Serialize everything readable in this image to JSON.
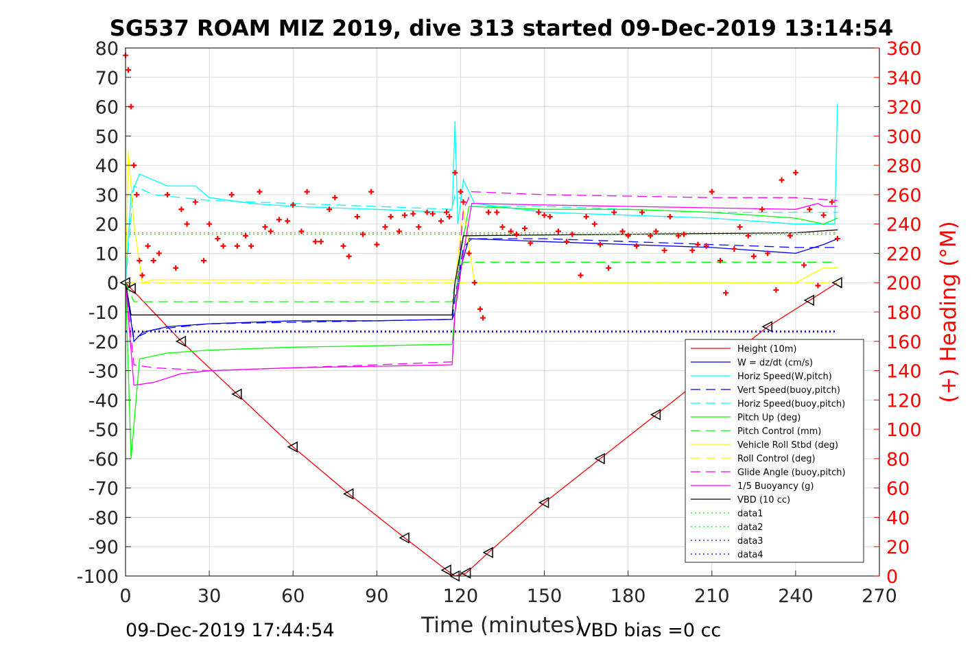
{
  "chart_data": {
    "type": "line",
    "title": "SG537 ROAM MIZ 2019, dive 313 started 09-Dec-2019 13:14:54",
    "xlabel": "Time (minutes)",
    "ylabel": "",
    "ylabel_right": "(+) Heading (°M)",
    "footer_left": "09-Dec-2019 17:44:54",
    "footer_right": "VBD bias =0 cc",
    "xlim": [
      0,
      270
    ],
    "ylim": [
      -100,
      80
    ],
    "ylim_right": [
      0,
      360
    ],
    "x_ticks": [
      "0",
      "30",
      "60",
      "90",
      "120",
      "150",
      "180",
      "210",
      "240",
      "270"
    ],
    "y_ticks": [
      "80",
      "70",
      "60",
      "50",
      "40",
      "30",
      "20",
      "10",
      "0",
      "-10",
      "-20",
      "-30",
      "-40",
      "-50",
      "-60",
      "-70",
      "-80",
      "-90",
      "-100"
    ],
    "y_right_ticks": [
      "360",
      "340",
      "320",
      "300",
      "280",
      "260",
      "240",
      "220",
      "200",
      "180",
      "160",
      "140",
      "120",
      "100",
      "80",
      "60",
      "40",
      "20",
      "0"
    ],
    "grid": true,
    "legend_position": "bottom-right",
    "colors": {
      "height": "#ff0000",
      "w": "#0000ff",
      "hspeed": "#00ffff",
      "vspeed_buoy": "#0000ff",
      "hspeed_buoy": "#00ffff",
      "pitch": "#00ff00",
      "pitch_ctrl": "#00cc00",
      "roll": "#ffff00",
      "roll_ctrl": "#ffff00",
      "glide": "#ff00ff",
      "buoy": "#ff00ff",
      "vbd": "#000000",
      "heading": "#ff0000"
    },
    "legend": [
      {
        "label": "Height (10m)",
        "color": "#ff0000",
        "style": "solid"
      },
      {
        "label": "W = dz/dt (cm/s)",
        "color": "#0000ff",
        "style": "solid"
      },
      {
        "label": "Horiz Speed(W,pitch)",
        "color": "#00ffff",
        "style": "solid"
      },
      {
        "label": "Vert Speed(buoy,pitch)",
        "color": "#0000ff",
        "style": "dashed"
      },
      {
        "label": "Horiz Speed(buoy,pitch)",
        "color": "#00ffff",
        "style": "dashed"
      },
      {
        "label": "Pitch Up (deg)",
        "color": "#00ff00",
        "style": "solid"
      },
      {
        "label": "Pitch Control (mm)",
        "color": "#00ff00",
        "style": "dashed"
      },
      {
        "label": "Vehicle Roll Stbd (deg)",
        "color": "#ffff00",
        "style": "solid"
      },
      {
        "label": "Roll Control (deg)",
        "color": "#ffff00",
        "style": "dashed"
      },
      {
        "label": "Glide Angle (buoy,pitch)",
        "color": "#ff00ff",
        "style": "dashed"
      },
      {
        "label": "1/5 Buoyancy (g)",
        "color": "#ff00ff",
        "style": "solid"
      },
      {
        "label": "VBD (10 cc)",
        "color": "#000000",
        "style": "solid"
      },
      {
        "label": "data1",
        "color": "#00ff00",
        "style": "dotted"
      },
      {
        "label": "data2",
        "color": "#00ff00",
        "style": "dotted"
      },
      {
        "label": "data3",
        "color": "#0000aa",
        "style": "dotted"
      },
      {
        "label": "data4",
        "color": "#0000ff",
        "style": "dotted"
      }
    ],
    "series": [
      {
        "name": "Height (10m)",
        "axis": "left",
        "style": "solid",
        "x": [
          0,
          2,
          20,
          40,
          60,
          80,
          100,
          115,
          118,
          122,
          130,
          150,
          170,
          190,
          210,
          230,
          245,
          255
        ],
        "y": [
          0,
          -2,
          -20,
          -38,
          -56,
          -72,
          -87,
          -98,
          -100,
          -99,
          -92,
          -75,
          -60,
          -45,
          -30,
          -15,
          -6,
          0
        ]
      },
      {
        "name": "W = dz/dt (cm/s)",
        "axis": "left",
        "style": "solid",
        "x": [
          0,
          3,
          6,
          15,
          30,
          60,
          90,
          117,
          118,
          120,
          123,
          150,
          180,
          210,
          240,
          250,
          255
        ],
        "y": [
          0,
          -20,
          -17,
          -15,
          -14,
          -13,
          -13,
          -12.5,
          -10,
          5,
          15,
          14,
          13,
          12,
          10,
          13,
          15
        ]
      },
      {
        "name": "Horiz Speed(W,pitch)",
        "axis": "left",
        "style": "solid",
        "x": [
          0,
          2,
          5,
          15,
          25,
          30,
          45,
          60,
          90,
          115,
          117,
          118,
          119,
          121,
          125,
          150,
          180,
          210,
          240,
          254,
          255
        ],
        "y": [
          0,
          30,
          37,
          33,
          33,
          29,
          27,
          26,
          25,
          24,
          25,
          55,
          20,
          35,
          27,
          24,
          23,
          22,
          20,
          20,
          61
        ]
      },
      {
        "name": "Vert Speed(buoy,pitch)",
        "axis": "left",
        "style": "dashed",
        "x": [
          0,
          3,
          10,
          30,
          60,
          90,
          117,
          118,
          121,
          124,
          150,
          180,
          210,
          240,
          255
        ],
        "y": [
          0,
          -19,
          -16,
          -14,
          -13.5,
          -13,
          -12.5,
          -5,
          12,
          15,
          15,
          14,
          13,
          12,
          12
        ]
      },
      {
        "name": "Horiz Speed(buoy,pitch)",
        "axis": "left",
        "style": "dashed",
        "x": [
          0,
          3,
          10,
          30,
          60,
          90,
          117,
          118,
          121,
          124,
          150,
          180,
          210,
          240,
          255
        ],
        "y": [
          0,
          33,
          30,
          28,
          27,
          26,
          25,
          30,
          28,
          26,
          26,
          25,
          24,
          24,
          24
        ]
      },
      {
        "name": "Pitch Up (deg)",
        "axis": "left",
        "style": "solid",
        "x": [
          0,
          2,
          5,
          15,
          30,
          60,
          90,
          117,
          118,
          120,
          123,
          150,
          180,
          210,
          240,
          250,
          255
        ],
        "y": [
          0,
          -60,
          -26,
          -24,
          -23,
          -22,
          -21.5,
          -21,
          -10,
          10,
          26,
          25,
          25,
          24,
          22,
          20,
          22
        ]
      },
      {
        "name": "Pitch Control (mm)",
        "axis": "left",
        "style": "dashed",
        "x": [
          0,
          3,
          117,
          118,
          121,
          255
        ],
        "y": [
          0,
          -6.5,
          -6.5,
          0,
          7,
          7
        ]
      },
      {
        "name": "Vehicle Roll Stbd (deg)",
        "axis": "left",
        "style": "solid",
        "x": [
          0,
          1,
          3,
          6,
          10,
          30,
          60,
          90,
          117,
          118,
          121,
          125,
          150,
          180,
          210,
          240,
          250,
          255
        ],
        "y": [
          0,
          45,
          20,
          0,
          1,
          1,
          1,
          1,
          1,
          0,
          25,
          0,
          0,
          0,
          0,
          0,
          5,
          5
        ]
      },
      {
        "name": "Roll Control (deg)",
        "axis": "left",
        "style": "dashed",
        "x": [
          0,
          255
        ],
        "y": [
          0,
          0
        ]
      },
      {
        "name": "Glide Angle (buoy,pitch)",
        "axis": "left",
        "style": "dashed",
        "x": [
          0,
          3,
          10,
          30,
          60,
          90,
          117,
          118,
          121,
          124,
          150,
          180,
          210,
          240,
          255
        ],
        "y": [
          0,
          -28,
          -29,
          -30,
          -29,
          -28,
          -27,
          -10,
          25,
          31,
          30,
          29.5,
          29,
          29,
          28
        ]
      },
      {
        "name": "1/5 Buoyancy (g)",
        "axis": "left",
        "style": "solid",
        "x": [
          0,
          3,
          10,
          20,
          30,
          60,
          90,
          117,
          118,
          121,
          124,
          150,
          180,
          210,
          240,
          248,
          250,
          255
        ],
        "y": [
          0,
          -35,
          -34,
          -31,
          -30,
          -29,
          -28.5,
          -28,
          -10,
          10,
          27,
          26.5,
          26,
          25.5,
          25,
          27,
          26,
          26
        ]
      },
      {
        "name": "VBD (10 cc)",
        "axis": "left",
        "style": "solid",
        "x": [
          0,
          2,
          117,
          118,
          121,
          240,
          255
        ],
        "y": [
          0,
          -11,
          -11,
          0,
          16,
          17,
          18
        ]
      },
      {
        "name": "data1",
        "axis": "left",
        "style": "dotted",
        "x": [
          0,
          255
        ],
        "y": [
          17,
          17
        ]
      },
      {
        "name": "data2",
        "axis": "left",
        "style": "dotted",
        "x": [
          0,
          255
        ],
        "y": [
          16.5,
          16.5
        ]
      },
      {
        "name": "data3",
        "axis": "left",
        "style": "dotted",
        "x": [
          0,
          255
        ],
        "y": [
          -16.5,
          -16.5
        ]
      },
      {
        "name": "data4",
        "axis": "left",
        "style": "dotted",
        "x": [
          0,
          255
        ],
        "y": [
          -16.8,
          -16.8
        ]
      },
      {
        "name": "Heading",
        "axis": "right",
        "style": "markers",
        "x": [
          0,
          1,
          2,
          3,
          4,
          5,
          6,
          8,
          10,
          12,
          15,
          18,
          20,
          22,
          25,
          28,
          30,
          33,
          35,
          38,
          40,
          43,
          45,
          48,
          50,
          52,
          55,
          58,
          60,
          63,
          65,
          68,
          70,
          73,
          75,
          78,
          80,
          83,
          85,
          88,
          90,
          93,
          95,
          98,
          100,
          103,
          105,
          108,
          110,
          113,
          115,
          116,
          118,
          120,
          121,
          123,
          125,
          127,
          128,
          130,
          133,
          135,
          138,
          140,
          143,
          145,
          148,
          150,
          152,
          155,
          158,
          160,
          163,
          165,
          168,
          170,
          173,
          175,
          178,
          180,
          183,
          185,
          188,
          190,
          193,
          195,
          198,
          200,
          203,
          205,
          208,
          210,
          213,
          215,
          218,
          220,
          223,
          225,
          228,
          230,
          233,
          235,
          238,
          240,
          243,
          245,
          248,
          250,
          253,
          255
        ],
        "y": [
          355,
          345,
          320,
          280,
          260,
          215,
          205,
          225,
          215,
          220,
          260,
          210,
          250,
          240,
          255,
          215,
          240,
          230,
          225,
          260,
          225,
          232,
          225,
          262,
          238,
          235,
          243,
          242,
          253,
          235,
          262,
          228,
          228,
          250,
          258,
          225,
          218,
          245,
          233,
          262,
          226,
          238,
          245,
          235,
          246,
          247,
          238,
          248,
          247,
          242,
          248,
          245,
          275,
          262,
          255,
          220,
          200,
          182,
          176,
          248,
          248,
          238,
          235,
          233,
          237,
          227,
          248,
          246,
          245,
          235,
          228,
          233,
          205,
          245,
          240,
          226,
          210,
          248,
          235,
          232,
          225,
          248,
          232,
          235,
          222,
          245,
          232,
          233,
          222,
          226,
          225,
          262,
          215,
          193,
          223,
          238,
          232,
          218,
          250,
          220,
          195,
          270,
          232,
          275,
          212,
          250,
          198,
          246,
          255,
          230
        ]
      }
    ]
  }
}
